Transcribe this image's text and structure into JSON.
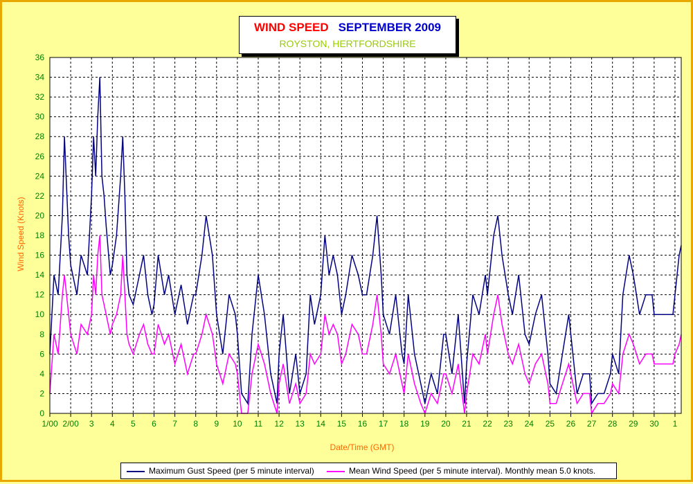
{
  "title": {
    "part1": "WIND SPEED",
    "part2": "SEPTEMBER 2009",
    "subtitle": "ROYSTON, HERTFORDSHIRE"
  },
  "chart_data": {
    "type": "line",
    "title": "WIND SPEED SEPTEMBER 2009",
    "subtitle": "ROYSTON, HERTFORDSHIRE",
    "xlabel": "Date/Time (GMT)",
    "ylabel": "Wind Speed (Knots)",
    "ylim": [
      0,
      36
    ],
    "xlim": [
      1,
      31.3
    ],
    "yticks": [
      "0",
      "2",
      "4",
      "6",
      "8",
      "10",
      "12",
      "14",
      "16",
      "18",
      "20",
      "22",
      "24",
      "26",
      "28",
      "30",
      "32",
      "34",
      "36"
    ],
    "xtick_labels": [
      "1/00",
      "2/00",
      "3",
      "4",
      "5",
      "6",
      "7",
      "8",
      "9",
      "10",
      "11",
      "12",
      "13",
      "14",
      "15",
      "16",
      "17",
      "18",
      "19",
      "20",
      "21",
      "22",
      "23",
      "24",
      "25",
      "26",
      "27",
      "28",
      "29",
      "30",
      "1"
    ],
    "grid": true,
    "legend_position": "bottom",
    "colors": {
      "gust": "#000080",
      "mean": "#ff00ff",
      "axis_labels": "#ff6600",
      "ticks": "#008000"
    },
    "series": [
      {
        "name": "Maximum Gust Speed (per 5 minute interval)",
        "x": [
          1.0,
          1.2,
          1.4,
          1.6,
          1.7,
          1.9,
          2.0,
          2.3,
          2.5,
          2.8,
          3.0,
          3.1,
          3.2,
          3.3,
          3.4,
          3.5,
          3.6,
          3.7,
          3.9,
          4.0,
          4.2,
          4.4,
          4.5,
          4.6,
          4.7,
          4.8,
          5.0,
          5.3,
          5.5,
          5.7,
          5.9,
          6.0,
          6.2,
          6.5,
          6.7,
          7.0,
          7.3,
          7.6,
          7.9,
          8.0,
          8.3,
          8.5,
          8.8,
          9.0,
          9.3,
          9.6,
          9.9,
          10.0,
          10.2,
          10.5,
          10.7,
          11.0,
          11.3,
          11.6,
          11.9,
          12.0,
          12.2,
          12.5,
          12.8,
          13.0,
          13.3,
          13.5,
          13.7,
          14.0,
          14.2,
          14.4,
          14.6,
          14.8,
          15.0,
          15.2,
          15.5,
          15.8,
          16.0,
          16.2,
          16.5,
          16.7,
          16.9,
          17.0,
          17.3,
          17.6,
          17.9,
          18.0,
          18.2,
          18.5,
          18.8,
          19.0,
          19.3,
          19.6,
          19.9,
          20.0,
          20.3,
          20.6,
          20.9,
          21.0,
          21.3,
          21.6,
          21.9,
          22.0,
          22.3,
          22.5,
          22.7,
          23.0,
          23.2,
          23.5,
          23.8,
          24.0,
          24.3,
          24.6,
          24.9,
          25.0,
          25.3,
          25.6,
          25.9,
          26.0,
          26.3,
          26.6,
          26.9,
          27.0,
          27.3,
          27.6,
          27.9,
          28.0,
          28.3,
          28.5,
          28.8,
          29.0,
          29.3,
          29.6,
          29.9,
          30.0,
          30.3,
          30.6,
          30.9,
          31.0,
          31.2,
          31.3
        ],
        "values": [
          6,
          14,
          12,
          20,
          28,
          18,
          15,
          12,
          16,
          14,
          22,
          28,
          24,
          30,
          34,
          24,
          22,
          19,
          14,
          15,
          18,
          24,
          28,
          22,
          14,
          12,
          11,
          14,
          16,
          12,
          10,
          11,
          16,
          12,
          14,
          10,
          13,
          9,
          12,
          12,
          16,
          20,
          16,
          10,
          6,
          12,
          10,
          8,
          2,
          1,
          8,
          14,
          10,
          4,
          1,
          6,
          10,
          2,
          6,
          2,
          4,
          12,
          9,
          12,
          18,
          14,
          16,
          14,
          10,
          12,
          16,
          14,
          12,
          12,
          16,
          20,
          14,
          10,
          8,
          12,
          6,
          5,
          12,
          6,
          3,
          1,
          4,
          2,
          8,
          8,
          4,
          10,
          1,
          5,
          12,
          10,
          14,
          12,
          18,
          20,
          16,
          12,
          10,
          14,
          8,
          7,
          10,
          12,
          6,
          3,
          2,
          6,
          10,
          8,
          2,
          4,
          4,
          1,
          2,
          2,
          4,
          6,
          4,
          12,
          16,
          14,
          10,
          12,
          12,
          10,
          10,
          10,
          10,
          12,
          16,
          17
        ]
      },
      {
        "name": "Mean Wind Speed (per 5 minute interval). Monthly mean 5.0 knots.",
        "x": [
          1.0,
          1.2,
          1.4,
          1.6,
          1.7,
          1.9,
          2.0,
          2.3,
          2.5,
          2.8,
          3.0,
          3.1,
          3.2,
          3.3,
          3.4,
          3.5,
          3.6,
          3.7,
          3.9,
          4.0,
          4.2,
          4.4,
          4.5,
          4.6,
          4.7,
          4.8,
          5.0,
          5.3,
          5.5,
          5.7,
          5.9,
          6.0,
          6.2,
          6.5,
          6.7,
          7.0,
          7.3,
          7.6,
          7.9,
          8.0,
          8.3,
          8.5,
          8.8,
          9.0,
          9.3,
          9.6,
          9.9,
          10.0,
          10.2,
          10.5,
          10.7,
          11.0,
          11.3,
          11.6,
          11.9,
          12.0,
          12.2,
          12.5,
          12.8,
          13.0,
          13.3,
          13.5,
          13.7,
          14.0,
          14.2,
          14.4,
          14.6,
          14.8,
          15.0,
          15.2,
          15.5,
          15.8,
          16.0,
          16.2,
          16.5,
          16.7,
          16.9,
          17.0,
          17.3,
          17.6,
          17.9,
          18.0,
          18.2,
          18.5,
          18.8,
          19.0,
          19.3,
          19.6,
          19.9,
          20.0,
          20.3,
          20.6,
          20.9,
          21.0,
          21.3,
          21.6,
          21.9,
          22.0,
          22.3,
          22.5,
          22.7,
          23.0,
          23.2,
          23.5,
          23.8,
          24.0,
          24.3,
          24.6,
          24.9,
          25.0,
          25.3,
          25.6,
          25.9,
          26.0,
          26.3,
          26.6,
          26.9,
          27.0,
          27.3,
          27.6,
          27.9,
          28.0,
          28.3,
          28.5,
          28.8,
          29.0,
          29.3,
          29.6,
          29.9,
          30.0,
          30.3,
          30.6,
          30.9,
          31.0,
          31.2,
          31.3
        ],
        "values": [
          2,
          8,
          6,
          12,
          14,
          10,
          8,
          6,
          9,
          8,
          10,
          14,
          12,
          16,
          18,
          12,
          11,
          10,
          8,
          9,
          10,
          12,
          16,
          12,
          8,
          7,
          6,
          8,
          9,
          7,
          6,
          6,
          9,
          7,
          8,
          5,
          7,
          4,
          6,
          6,
          8,
          10,
          8,
          5,
          3,
          6,
          5,
          4,
          0,
          0,
          4,
          7,
          5,
          2,
          0,
          3,
          5,
          1,
          3,
          1,
          2,
          6,
          5,
          6,
          10,
          8,
          9,
          8,
          5,
          6,
          9,
          8,
          6,
          6,
          9,
          12,
          8,
          5,
          4,
          6,
          3,
          2,
          6,
          3,
          1,
          0,
          2,
          1,
          4,
          4,
          2,
          5,
          0,
          2,
          6,
          5,
          8,
          6,
          10,
          12,
          9,
          6,
          5,
          7,
          4,
          3,
          5,
          6,
          3,
          1,
          1,
          3,
          5,
          4,
          1,
          2,
          2,
          0,
          1,
          1,
          2,
          3,
          2,
          6,
          8,
          7,
          5,
          6,
          6,
          5,
          5,
          5,
          5,
          6,
          7,
          8
        ]
      }
    ]
  },
  "legend": {
    "gust_label": "Maximum Gust Speed (per 5 minute interval)",
    "mean_label": "Mean Wind Speed (per 5 minute interval). Monthly mean 5.0 knots."
  }
}
